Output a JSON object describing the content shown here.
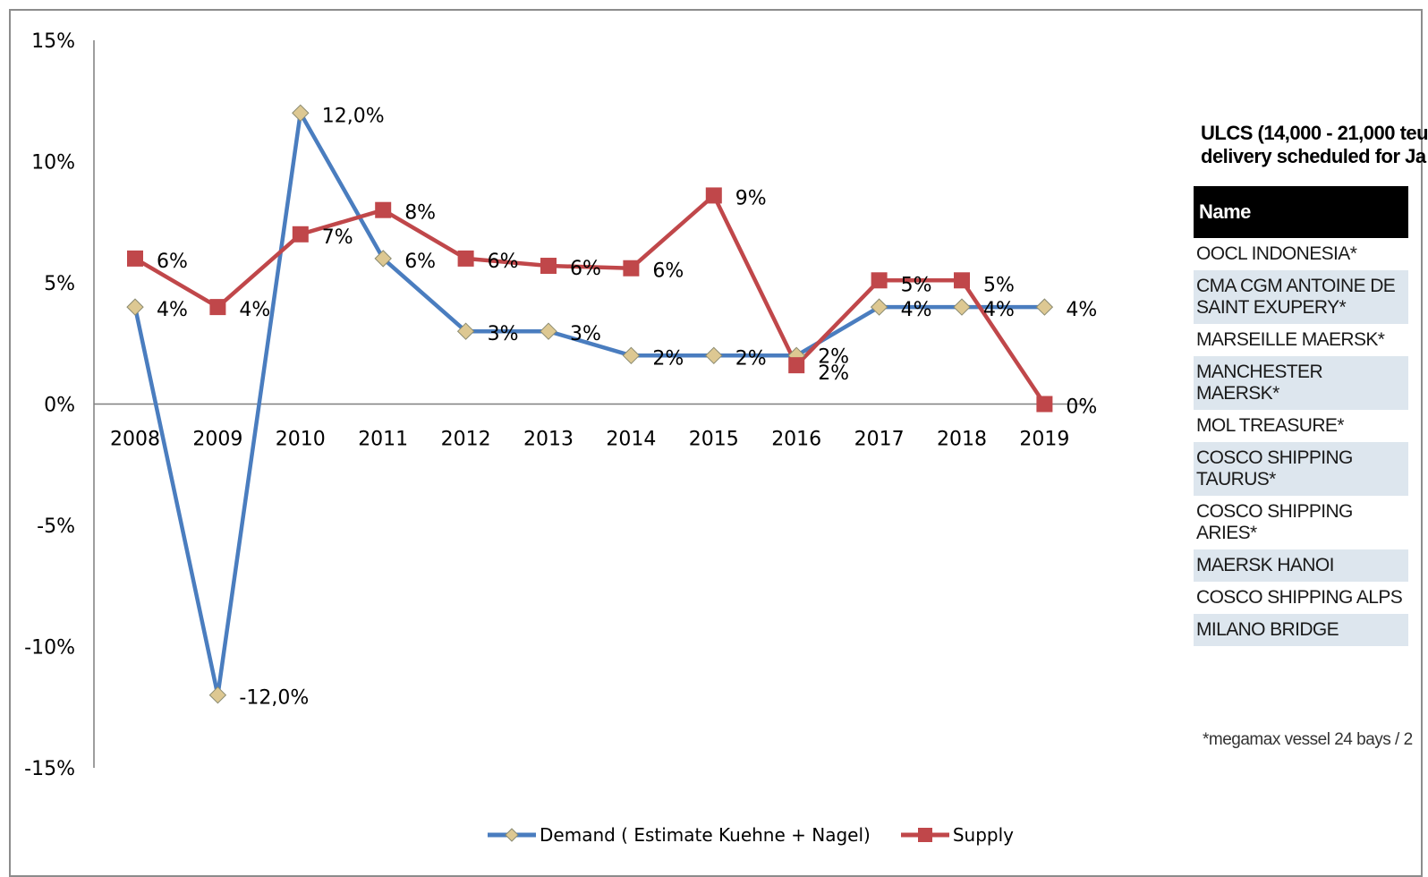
{
  "chart_data": {
    "type": "line",
    "x": [
      "2008",
      "2009",
      "2010",
      "2011",
      "2012",
      "2013",
      "2014",
      "2015",
      "2016",
      "2017",
      "2018",
      "2019"
    ],
    "ylim": [
      -15,
      15
    ],
    "yticks": [
      "15%",
      "10%",
      "5%",
      "0%",
      "-5%",
      "-10%",
      "-15%"
    ],
    "ytick_values": [
      15,
      10,
      5,
      0,
      -5,
      -10,
      -15
    ],
    "grid": false,
    "legend_position": "bottom",
    "series": [
      {
        "name": "Demand ( Estimate Kuehne + Nagel)",
        "color": "#4a7dbf",
        "marker": "diamond",
        "marker_color": "#ddc892",
        "values": [
          4,
          -12,
          12,
          6,
          3,
          3,
          2,
          2,
          2,
          4,
          4,
          4
        ],
        "labels": [
          "4%",
          "-12,0%",
          "12,0%",
          "6%",
          "3%",
          "3%",
          "2%",
          "2%",
          "2%",
          "4%",
          "4%",
          "4%"
        ]
      },
      {
        "name": "Supply",
        "color": "#c0474a",
        "marker": "square",
        "values": [
          6,
          4,
          7,
          8,
          6,
          5.7,
          5.6,
          8.6,
          1.6,
          5.1,
          5.1,
          0
        ],
        "labels": [
          "6%",
          "4%",
          "7%",
          "8%",
          "6%",
          "6%",
          "6%",
          "9%",
          "2%",
          "5%",
          "5%",
          "0%"
        ]
      }
    ]
  },
  "side_panel": {
    "title_line1": "ULCS (14,000 - 21,000 teu",
    "title_line2": "delivery scheduled for Ja",
    "header": "Name",
    "rows": [
      "OOCL INDONESIA*",
      "CMA CGM ANTOINE DE SAINT EXUPERY*",
      "MARSEILLE MAERSK*",
      "MANCHESTER MAERSK*",
      "MOL TREASURE*",
      "COSCO SHIPPING TAURUS*",
      "COSCO SHIPPING ARIES*",
      "MAERSK HANOI",
      "COSCO SHIPPING ALPS",
      "MILANO BRIDGE"
    ],
    "footnote": "*megamax vessel 24 bays / 2"
  }
}
